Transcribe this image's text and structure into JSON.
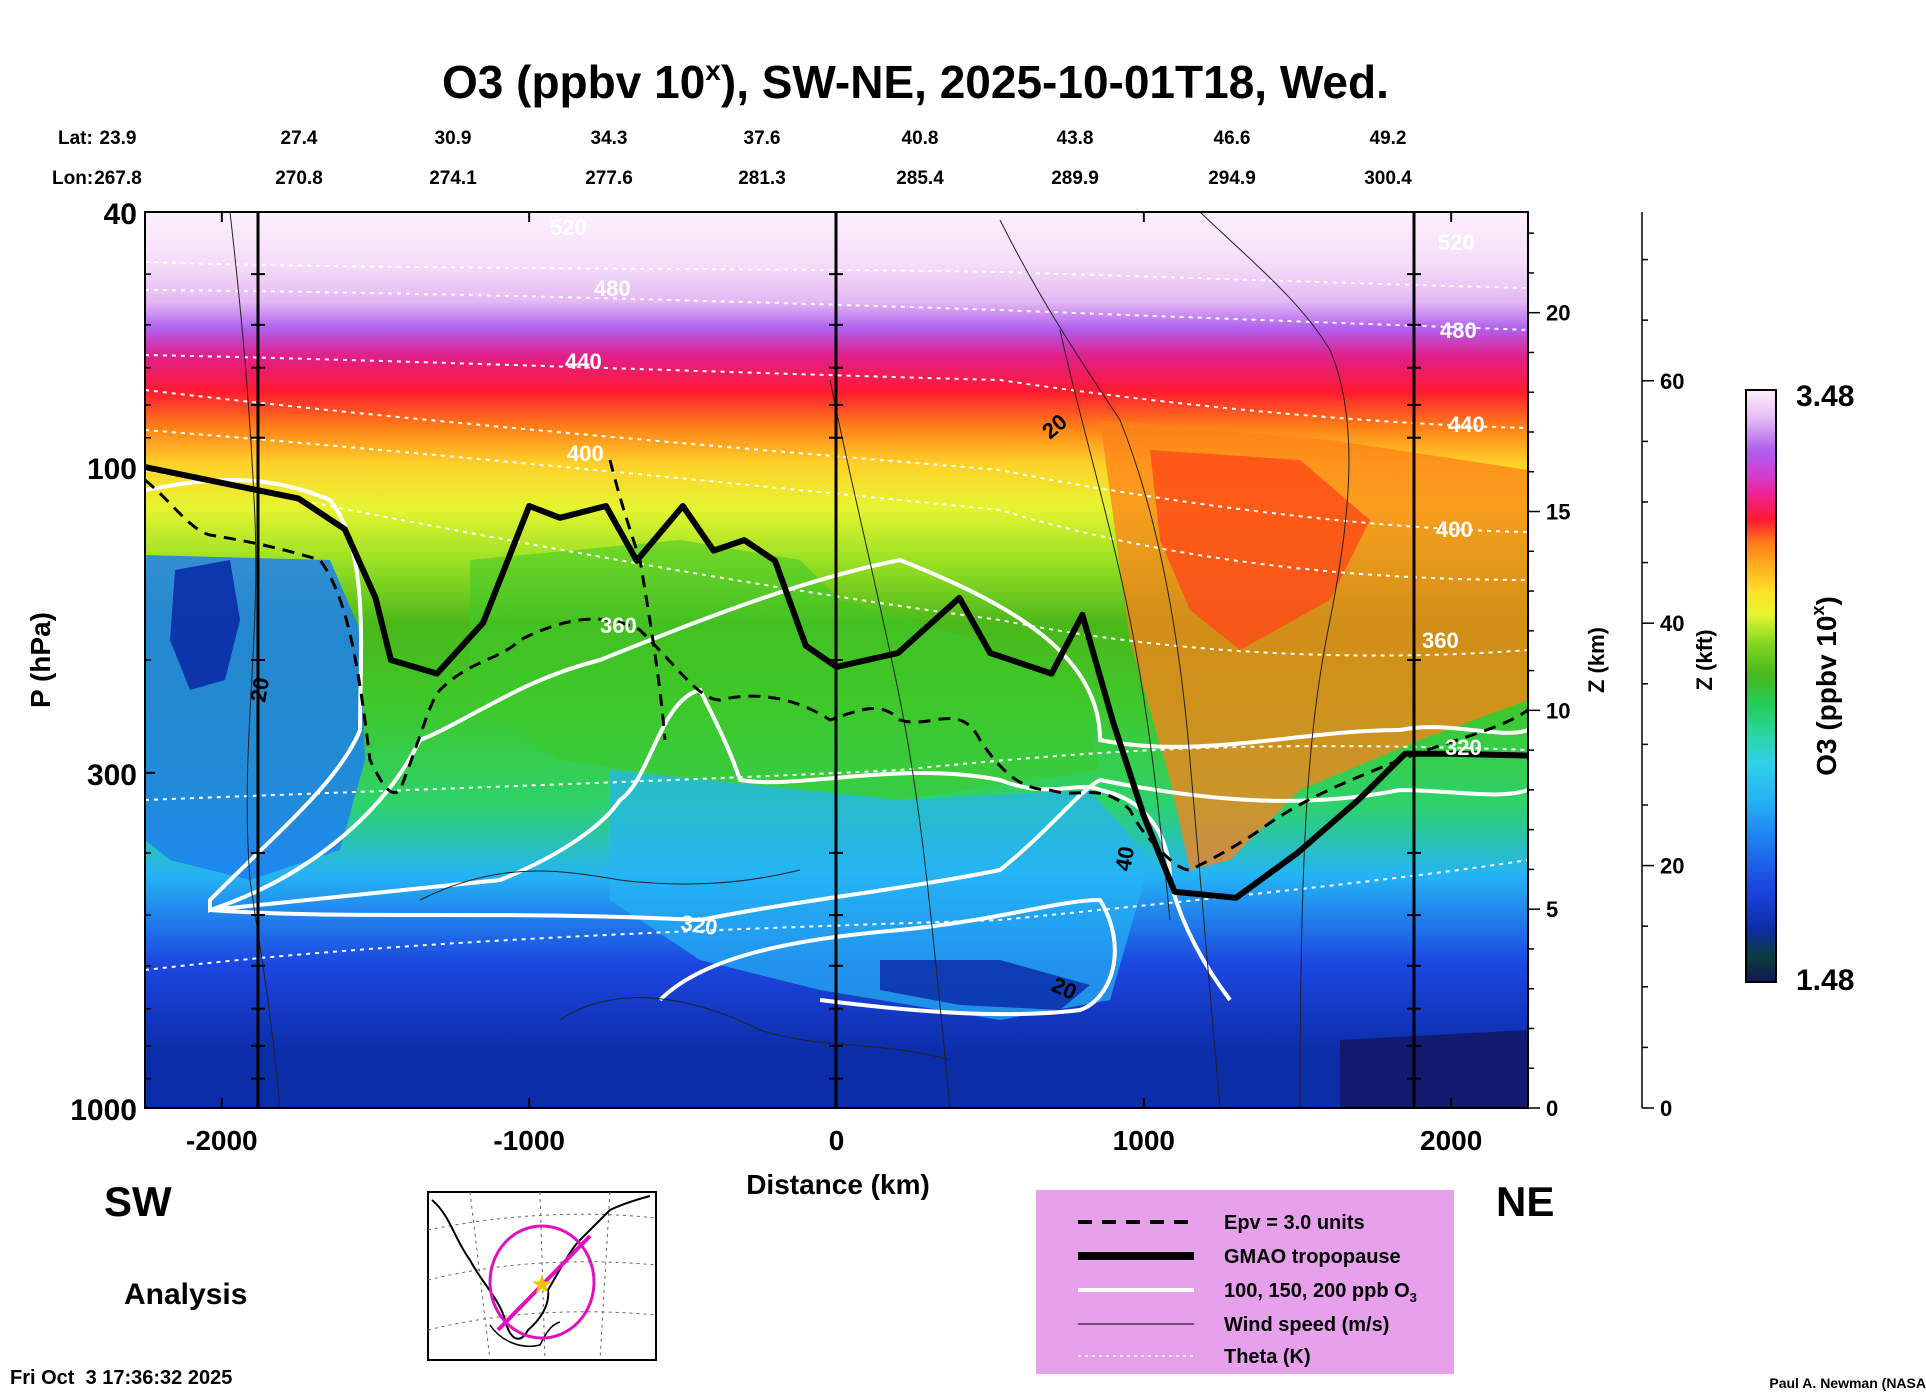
{
  "chart_data": {
    "type": "heatmap",
    "title_main": "O3 (ppbv 10",
    "title_sup": "x",
    "title_rest": "), SW-NE, 2025-10-01T18, Wed.",
    "lat_label": "Lat:",
    "lon_label": "Lon:",
    "lats": [
      "23.9",
      "27.4",
      "30.9",
      "34.3",
      "37.6",
      "40.8",
      "43.8",
      "46.6",
      "49.2"
    ],
    "lons": [
      "267.8",
      "270.8",
      "274.1",
      "277.6",
      "281.3",
      "285.4",
      "289.9",
      "294.9",
      "300.4"
    ],
    "xlabel": "Distance (km)",
    "x_range": [
      -2250,
      2250
    ],
    "x_ticks": [
      -2000,
      -1000,
      0,
      1000,
      2000
    ],
    "x_tick_labels": [
      "-2000",
      "-1000",
      "0",
      "1000",
      "2000"
    ],
    "ylabel": "P (hPa)",
    "y_range": [
      1000,
      40
    ],
    "y_ticks": [
      40,
      100,
      300,
      1000
    ],
    "y_tick_labels": [
      "40",
      "100",
      "300",
      "1000"
    ],
    "z_km_label": "Z (km)",
    "z_km_ticks": [
      0,
      5,
      10,
      15,
      20
    ],
    "z_km_tick_labels": [
      "0",
      "5",
      "10",
      "15",
      "20"
    ],
    "z_kft_label": "Z (kft)",
    "z_kft_ticks": [
      0,
      20,
      40,
      60
    ],
    "z_kft_tick_labels": [
      "0",
      "20",
      "40",
      "60"
    ],
    "colorbar": {
      "label_main": "O3 (ppbv 10",
      "label_sup": "x",
      "label_end": ")",
      "min": 1.48,
      "max": 3.48,
      "min_label": "1.48",
      "max_label": "3.48",
      "colors": [
        "#14145a",
        "#0a3d3a",
        "#0b2da8",
        "#1c46e0",
        "#1e7ff0",
        "#25b4f5",
        "#2ed2e8",
        "#29d6a0",
        "#22cc55",
        "#4ab81a",
        "#7fd61f",
        "#b8e82a",
        "#e6f530",
        "#ffe02a",
        "#ffb020",
        "#ff8018",
        "#ff4a18",
        "#ff1a30",
        "#f0208c",
        "#d040d8",
        "#b060f0",
        "#c890f0",
        "#e4b8f4",
        "#f4dcf8",
        "#fcf0fc"
      ]
    },
    "theta_levels": [
      "320",
      "360",
      "400",
      "440",
      "480",
      "520"
    ],
    "theta_labels_right": [
      "520",
      "480",
      "440",
      "400",
      "360",
      "320"
    ],
    "wind_labels": [
      "20",
      "20",
      "40",
      "20"
    ],
    "ozone_contours_ppb": [
      100,
      150,
      200
    ],
    "epv_units": 3.0,
    "tropopause_hpa": {
      "x": [
        -2250,
        -1750,
        -1600,
        -1500,
        -1450,
        -1300,
        -1150,
        -1000,
        -900,
        -750,
        -650,
        -500,
        -400,
        -300,
        -200,
        -100,
        0,
        200,
        400,
        500,
        700,
        800,
        900,
        1000,
        1100,
        1300,
        1500,
        1700,
        1850,
        2000,
        2250
      ],
      "p": [
        100,
        112,
        125,
        160,
        200,
        210,
        175,
        115,
        120,
        115,
        140,
        115,
        135,
        130,
        140,
        190,
        205,
        195,
        160,
        195,
        210,
        170,
        250,
        350,
        460,
        470,
        400,
        330,
        280,
        280,
        282
      ]
    },
    "legend": {
      "epv": "Epv = 3.0 units",
      "tropopause": "GMAO tropopause",
      "ozone": "100, 150, 200 ppb O",
      "ozone_sub": "3",
      "wind": "Wind speed (m/s)",
      "theta": "Theta (K)"
    },
    "direction_left": "SW",
    "direction_right": "NE",
    "mode": "Analysis",
    "timestamp": "Fri Oct  3 17:36:32 2025",
    "credit": "Paul A. Newman (NASA"
  }
}
